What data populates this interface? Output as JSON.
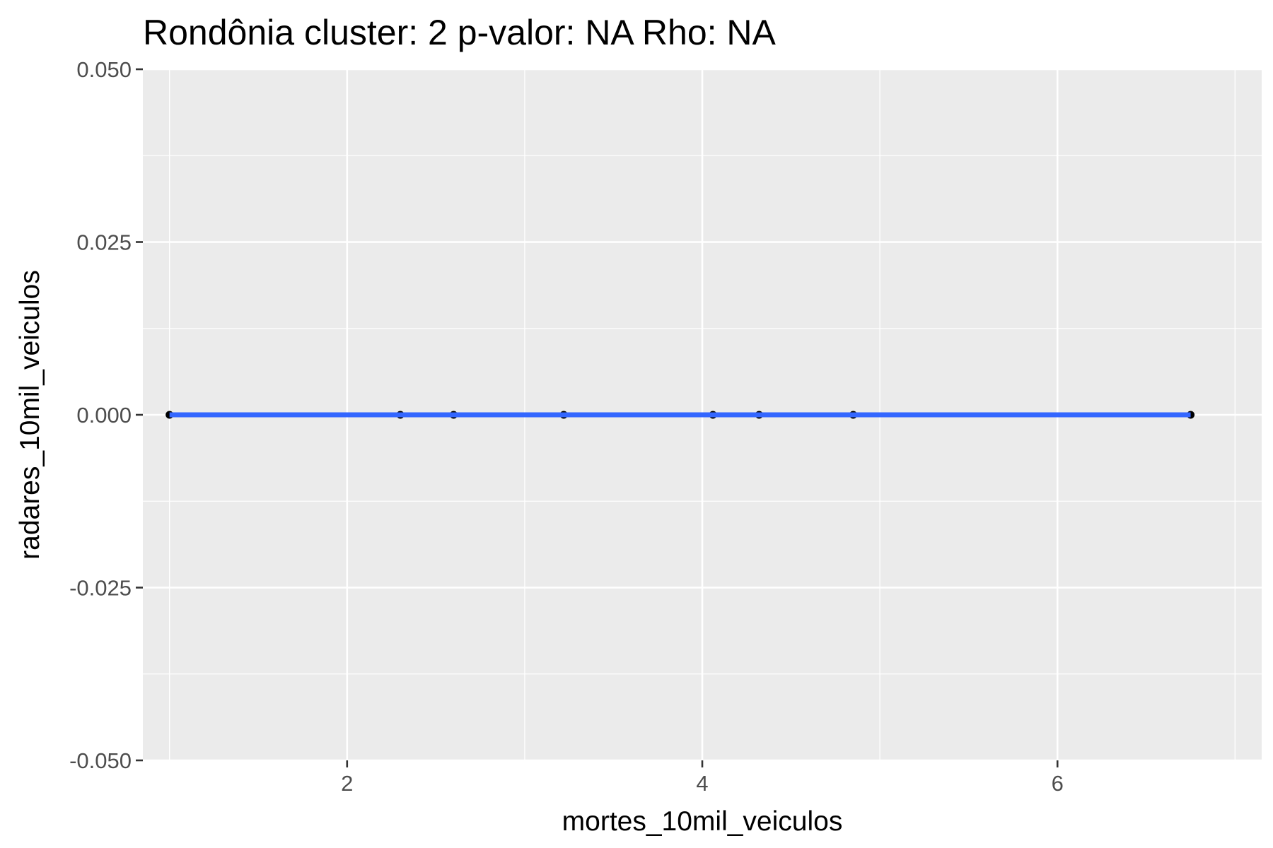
{
  "chart_data": {
    "type": "scatter",
    "title": "Rondônia cluster: 2 p-valor: NA Rho: NA",
    "xlabel": "mortes_10mil_veiculos",
    "ylabel": "radares_10mil_veiculos",
    "xlim": [
      0.85,
      7.15
    ],
    "ylim": [
      -0.05,
      0.05
    ],
    "x_ticks": [
      2,
      4,
      6
    ],
    "x_tick_labels": [
      "2",
      "4",
      "6"
    ],
    "x_minor": [
      1,
      3,
      5,
      7
    ],
    "y_ticks": [
      -0.05,
      -0.025,
      0,
      0.025,
      0.05
    ],
    "y_tick_labels": [
      "-0.050",
      "-0.025",
      "0.000",
      "0.025",
      "0.050"
    ],
    "grid": true,
    "series": [
      {
        "points": [
          {
            "x": 1.0,
            "y": 0
          },
          {
            "x": 2.3,
            "y": 0
          },
          {
            "x": 2.6,
            "y": 0
          },
          {
            "x": 3.22,
            "y": 0
          },
          {
            "x": 4.06,
            "y": 0
          },
          {
            "x": 4.32,
            "y": 0
          },
          {
            "x": 4.85,
            "y": 0
          },
          {
            "x": 6.75,
            "y": 0
          }
        ]
      }
    ],
    "fit_line": {
      "x": [
        1.0,
        6.75
      ],
      "y": [
        0,
        0
      ]
    },
    "colors": {
      "panel": "#ebebeb",
      "grid": "#ffffff",
      "points": "#000000",
      "fit_line": "#3366ff"
    }
  }
}
